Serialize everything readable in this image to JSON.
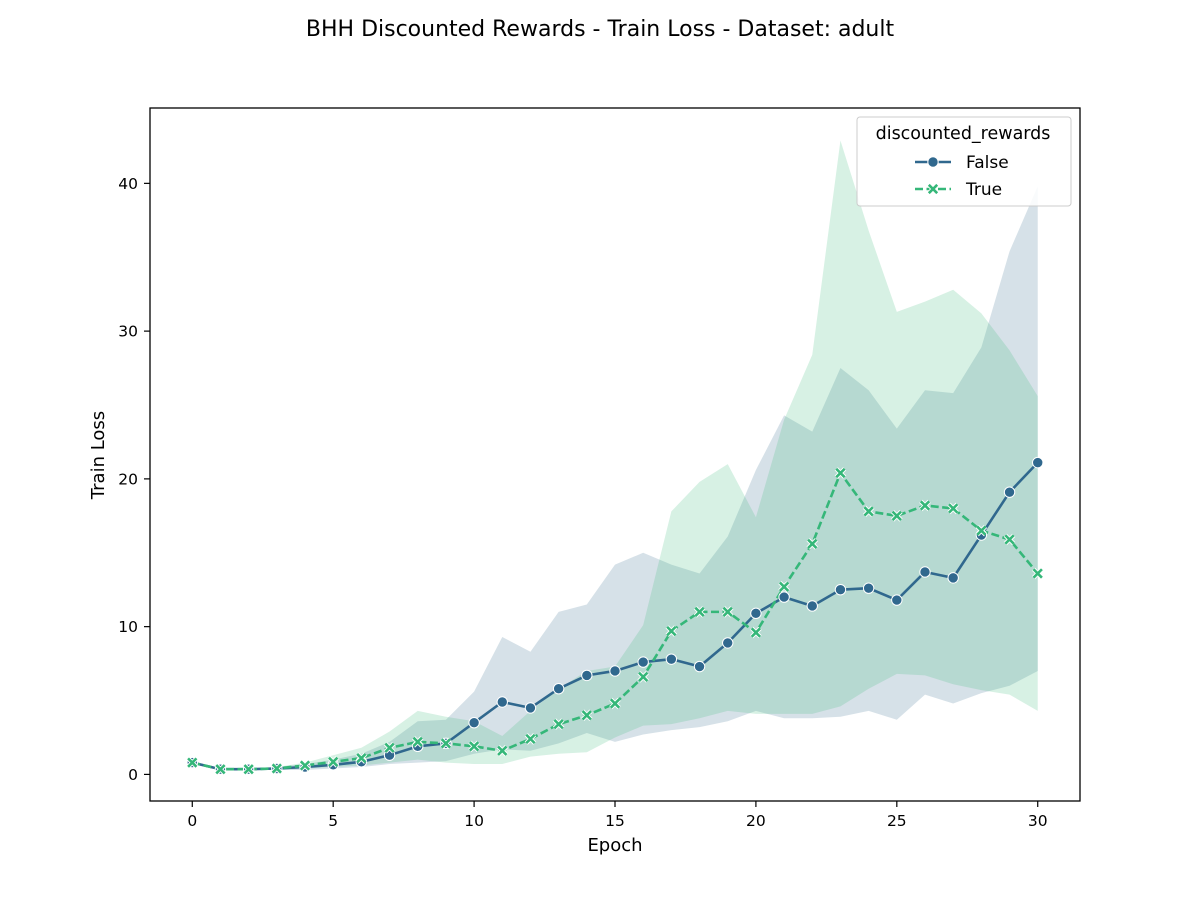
{
  "chart_data": {
    "type": "line",
    "title": "BHH Discounted Rewards - Train Loss - Dataset: adult",
    "xlabel": "Epoch",
    "ylabel": "Train Loss",
    "xlim": [
      -1.5,
      31.5
    ],
    "ylim": [
      -1.8,
      45.1
    ],
    "xticks": [
      0,
      5,
      10,
      15,
      20,
      25,
      30
    ],
    "yticks": [
      0,
      10,
      20,
      30,
      40
    ],
    "grid": false,
    "legend": {
      "title": "discounted_rewards",
      "placement": "top-right"
    },
    "x": [
      0,
      1,
      2,
      3,
      4,
      5,
      6,
      7,
      8,
      9,
      10,
      11,
      12,
      13,
      14,
      15,
      16,
      17,
      18,
      19,
      20,
      21,
      22,
      23,
      24,
      25,
      26,
      27,
      28,
      29,
      30
    ],
    "series": [
      {
        "name": "False",
        "color": "#30688e",
        "marker": "circle",
        "dash": "solid",
        "values": [
          0.8,
          0.35,
          0.35,
          0.4,
          0.5,
          0.65,
          0.85,
          1.3,
          1.9,
          2.1,
          3.5,
          4.9,
          4.5,
          5.8,
          6.7,
          7.0,
          7.6,
          7.8,
          7.3,
          8.9,
          10.9,
          12.0,
          11.4,
          12.5,
          12.6,
          11.8,
          13.7,
          13.3,
          16.2,
          19.1,
          21.1
        ],
        "lower": [
          0.8,
          0.3,
          0.3,
          0.3,
          0.3,
          0.4,
          0.5,
          0.7,
          0.8,
          0.9,
          1.4,
          1.7,
          1.6,
          2.1,
          2.8,
          2.2,
          2.7,
          3.0,
          3.2,
          3.6,
          4.3,
          3.8,
          3.8,
          3.9,
          4.3,
          3.7,
          5.4,
          4.8,
          5.5,
          6.0,
          7.0
        ],
        "upper": [
          0.9,
          0.4,
          0.4,
          0.5,
          0.7,
          1.0,
          1.4,
          2.2,
          3.6,
          3.7,
          5.6,
          9.3,
          8.3,
          11.0,
          11.5,
          14.2,
          15.0,
          14.2,
          13.6,
          16.1,
          20.6,
          24.3,
          23.2,
          27.5,
          26.0,
          23.4,
          26.0,
          25.8,
          28.9,
          35.4,
          39.8
        ]
      },
      {
        "name": "True",
        "color": "#35b779",
        "marker": "x",
        "dash": "dashed",
        "values": [
          0.8,
          0.35,
          0.35,
          0.4,
          0.6,
          0.85,
          1.1,
          1.8,
          2.2,
          2.1,
          1.9,
          1.6,
          2.4,
          3.4,
          4.0,
          4.8,
          6.6,
          9.7,
          11.0,
          11.0,
          9.6,
          12.7,
          15.6,
          20.4,
          17.8,
          17.5,
          18.2,
          18.0,
          16.5,
          15.9,
          13.6
        ],
        "lower": [
          0.7,
          0.3,
          0.3,
          0.3,
          0.4,
          0.5,
          0.6,
          0.8,
          1.0,
          0.8,
          0.7,
          0.7,
          1.2,
          1.4,
          1.5,
          2.5,
          3.3,
          3.4,
          3.8,
          4.3,
          4.1,
          4.1,
          4.1,
          4.6,
          5.8,
          6.8,
          6.7,
          6.1,
          5.7,
          5.4,
          4.3
        ],
        "upper": [
          0.9,
          0.4,
          0.4,
          0.5,
          0.8,
          1.3,
          1.8,
          2.9,
          4.3,
          3.9,
          3.6,
          2.6,
          4.3,
          5.8,
          7.0,
          7.3,
          10.1,
          17.8,
          19.8,
          21.0,
          17.4,
          24.0,
          28.4,
          42.9,
          36.8,
          31.3,
          32.0,
          32.8,
          31.2,
          28.7,
          25.6
        ]
      }
    ]
  }
}
